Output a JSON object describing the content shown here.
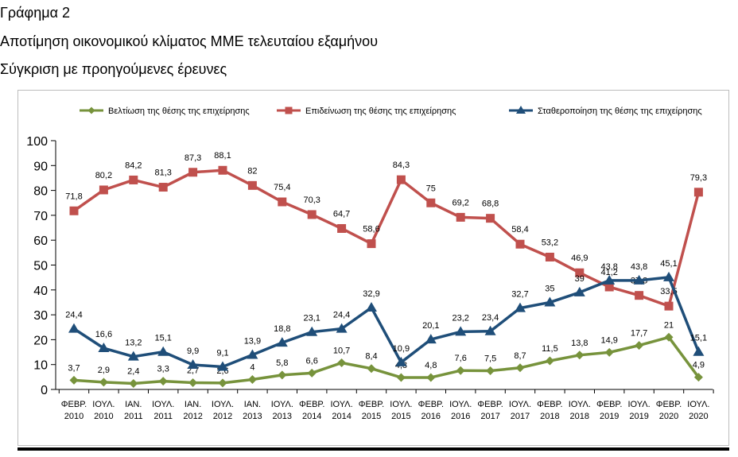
{
  "header": {
    "title": "Γράφημα 2",
    "subtitle1": "Αποτίμηση οικονομικού κλίματος ΜΜΕ τελευταίου εξαμήνου",
    "subtitle2": "Σύγκριση με προηγούμενες έρευνες"
  },
  "chart_data": {
    "type": "line",
    "title": "Γράφημα 2",
    "subtitle": "Αποτίμηση οικονομικού κλίματος ΜΜΕ τελευταίου εξαμήνου / Σύγκριση με προηγούμενες έρευνες",
    "xlabel": "",
    "ylabel": "",
    "ylim": [
      0,
      100
    ],
    "yticks": [
      0,
      10,
      20,
      30,
      40,
      50,
      60,
      70,
      80,
      90,
      100
    ],
    "grid": false,
    "legend_position": "top",
    "categories": [
      [
        "ΦΕΒΡ.",
        "2010"
      ],
      [
        "ΙΟΥΛ.",
        "2010"
      ],
      [
        "ΙΑΝ.",
        "2011"
      ],
      [
        "ΙΟΥΛ.",
        "2011"
      ],
      [
        "ΙΑΝ.",
        "2012"
      ],
      [
        "ΙΟΥΛ.",
        "2012"
      ],
      [
        "ΙΑΝ.",
        "2013"
      ],
      [
        "ΙΟΥΛ.",
        "2013"
      ],
      [
        "ΦΕΒΡ.",
        "2014"
      ],
      [
        "ΙΟΥΛ.",
        "2014"
      ],
      [
        "ΦΕΒΡ.",
        "2015"
      ],
      [
        "ΙΟΥΛ.",
        "2015"
      ],
      [
        "ΦΕΒΡ.",
        "2016"
      ],
      [
        "ΙΟΥΛ.",
        "2016"
      ],
      [
        "ΦΕΒΡ.",
        "2017"
      ],
      [
        "ΙΟΥΛ.",
        "2017"
      ],
      [
        "ΦΕΒΡ.",
        "2018"
      ],
      [
        "ΙΟΥΛ.",
        "2018"
      ],
      [
        "ΦΕΒΡ.",
        "2019"
      ],
      [
        "ΙΟΥΛ.",
        "2019"
      ],
      [
        "ΦΕΒΡ.",
        "2020"
      ],
      [
        "ΙΟΥΛ.",
        "2020"
      ]
    ],
    "series": [
      {
        "name": "Βελτίωση της θέσης της επιχείρησης",
        "color": "#77933c",
        "marker": "diamond",
        "values": [
          3.7,
          2.9,
          2.4,
          3.3,
          2.7,
          2.6,
          4,
          5.8,
          6.6,
          10.7,
          8.4,
          4.8,
          4.8,
          7.6,
          7.5,
          8.7,
          11.5,
          13.8,
          14.9,
          17.7,
          21,
          4.9
        ],
        "labels": [
          "3,7",
          "2,9",
          "2,4",
          "3,3",
          "2,7",
          "2,6",
          "4",
          "5,8",
          "6,6",
          "10,7",
          "8,4",
          "4,8",
          "4,8",
          "7,6",
          "7,5",
          "8,7",
          "11,5",
          "13,8",
          "14,9",
          "17,7",
          "21",
          "4,9"
        ]
      },
      {
        "name": "Επιδείνωση της θέσης της επιχείρησης",
        "color": "#c0504d",
        "marker": "square",
        "values": [
          71.8,
          80.2,
          84.2,
          81.3,
          87.3,
          88.1,
          82,
          75.4,
          70.3,
          64.7,
          58.6,
          84.3,
          75,
          69.2,
          68.8,
          58.4,
          53.2,
          46.9,
          41.2,
          37.8,
          33.5,
          79.3
        ],
        "labels": [
          "71,8",
          "80,2",
          "84,2",
          "81,3",
          "87,3",
          "88,1",
          "82",
          "75,4",
          "70,3",
          "64,7",
          "58,6",
          "84,3",
          "75",
          "69,2",
          "68,8",
          "58,4",
          "53,2",
          "46,9",
          "41,2",
          "37,8",
          "33,5",
          "79,3"
        ]
      },
      {
        "name": "Σταθεροποίηση της θέσης της επιχείρησης",
        "color": "#1f4e79",
        "marker": "triangle",
        "values": [
          24.4,
          16.6,
          13.2,
          15.1,
          9.9,
          9.1,
          13.9,
          18.8,
          23.1,
          24.4,
          32.9,
          10.9,
          20.1,
          23.2,
          23.4,
          32.7,
          35,
          39,
          43.8,
          43.8,
          45.1,
          15.1
        ],
        "labels": [
          "24,4",
          "16,6",
          "13,2",
          "15,1",
          "9,9",
          "9,1",
          "13,9",
          "18,8",
          "23,1",
          "24,4",
          "32,9",
          "10,9",
          "20,1",
          "23,2",
          "23,4",
          "32,7",
          "35",
          "39",
          "43,8",
          "43,8",
          "45,1",
          "15,1"
        ]
      }
    ]
  }
}
